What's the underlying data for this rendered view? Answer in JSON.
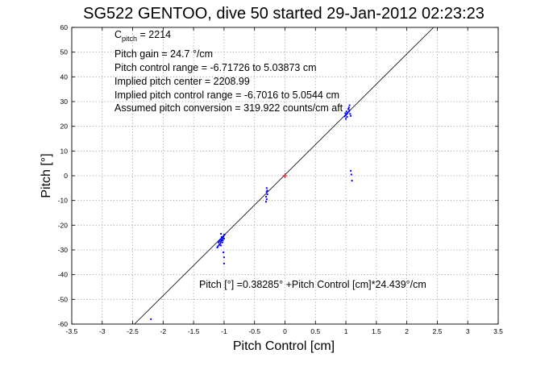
{
  "chart_data": {
    "type": "scatter",
    "title": "SG522 GENTOO, dive 50 started 29-Jan-2012 02:23:23",
    "xlabel": "Pitch Control [cm]",
    "ylabel": "Pitch [°]",
    "xlim": [
      -3.5,
      3.5
    ],
    "ylim": [
      -60,
      60
    ],
    "xticks": [
      "-3.5",
      "-3",
      "-2.5",
      "-2",
      "-1.5",
      "-1",
      "-0.5",
      "0",
      "0.5",
      "1",
      "1.5",
      "2",
      "2.5",
      "3",
      "3.5"
    ],
    "xtick_values": [
      -3.5,
      -3,
      -2.5,
      -2,
      -1.5,
      -1,
      -0.5,
      0,
      0.5,
      1,
      1.5,
      2,
      2.5,
      3,
      3.5
    ],
    "yticks": [
      "-60",
      "-50",
      "-40",
      "-30",
      "-20",
      "-10",
      "0",
      "10",
      "20",
      "30",
      "40",
      "50",
      "60"
    ],
    "ytick_values": [
      -60,
      -50,
      -40,
      -30,
      -20,
      -10,
      0,
      10,
      20,
      30,
      40,
      50,
      60
    ],
    "grid": true,
    "annotations": {
      "c_pitch_main": "C",
      "c_pitch_sub": "pitch",
      "c_pitch_value": " = 2214",
      "pitch_gain": "Pitch gain = 24.7 °/cm",
      "control_range": "Pitch control range = -6.71726 to 5.03873 cm",
      "implied_center": "Implied pitch center = 2208.99",
      "implied_range": "Implied pitch control range = -6.7016 to 5.0544 cm",
      "assumed_conversion": "Assumed pitch conversion = 319.922 counts/cm aft",
      "fit_equation": "Pitch [°] =0.38285° +Pitch Control [cm]*24.439°/cm"
    },
    "fit": {
      "intercept": 0.38285,
      "slope": 24.439
    },
    "colors": {
      "points": "#0000ff",
      "fit_line": "#000000",
      "center_marker": "#ff0000"
    },
    "center_marker": {
      "x": 0,
      "y": 0
    },
    "series": [
      {
        "values": [
          {
            "x": -1.1,
            "y": -28.5
          },
          {
            "x": -1.08,
            "y": -28.0
          },
          {
            "x": -1.06,
            "y": -27.2
          },
          {
            "x": -1.05,
            "y": -26.5
          },
          {
            "x": -1.04,
            "y": -26.0
          },
          {
            "x": -1.03,
            "y": -25.5
          },
          {
            "x": -1.02,
            "y": -25.0
          },
          {
            "x": -1.01,
            "y": -24.5
          },
          {
            "x": -1.0,
            "y": -24.0
          },
          {
            "x": -1.07,
            "y": -27.8
          },
          {
            "x": -1.09,
            "y": -27.0
          },
          {
            "x": -1.05,
            "y": -28.2
          },
          {
            "x": -1.03,
            "y": -27.0
          },
          {
            "x": -1.06,
            "y": -25.8
          },
          {
            "x": -1.02,
            "y": -26.2
          },
          {
            "x": -1.04,
            "y": -24.8
          },
          {
            "x": -1.11,
            "y": -29.0
          },
          {
            "x": -1.08,
            "y": -26.4
          },
          {
            "x": -1.0,
            "y": -25.4
          },
          {
            "x": -0.99,
            "y": -23.8
          },
          {
            "x": -1.05,
            "y": -23.5
          },
          {
            "x": -1.01,
            "y": -31.0
          },
          {
            "x": -1.0,
            "y": -33.0
          },
          {
            "x": -1.0,
            "y": -35.5
          },
          {
            "x": -0.3,
            "y": -5.0
          },
          {
            "x": -0.3,
            "y": -6.5
          },
          {
            "x": -0.29,
            "y": -7.5
          },
          {
            "x": -0.31,
            "y": -8.5
          },
          {
            "x": -0.3,
            "y": -9.5
          },
          {
            "x": -0.31,
            "y": -10.5
          },
          {
            "x": -0.29,
            "y": -6.0
          },
          {
            "x": 0.98,
            "y": 24.0
          },
          {
            "x": 1.0,
            "y": 24.5
          },
          {
            "x": 1.02,
            "y": 25.0
          },
          {
            "x": 1.03,
            "y": 25.5
          },
          {
            "x": 1.05,
            "y": 26.0
          },
          {
            "x": 1.06,
            "y": 26.5
          },
          {
            "x": 1.04,
            "y": 27.0
          },
          {
            "x": 1.01,
            "y": 26.0
          },
          {
            "x": 0.99,
            "y": 25.3
          },
          {
            "x": 1.07,
            "y": 25.0
          },
          {
            "x": 1.08,
            "y": 24.2
          },
          {
            "x": 1.0,
            "y": 23.0
          },
          {
            "x": 1.05,
            "y": 27.6
          },
          {
            "x": 1.02,
            "y": 23.8
          },
          {
            "x": 1.06,
            "y": 28.5
          },
          {
            "x": 1.08,
            "y": 2.0
          },
          {
            "x": 1.09,
            "y": 0.5
          },
          {
            "x": 1.1,
            "y": -2.0
          },
          {
            "x": -2.2,
            "y": -58.0
          }
        ]
      }
    ]
  }
}
